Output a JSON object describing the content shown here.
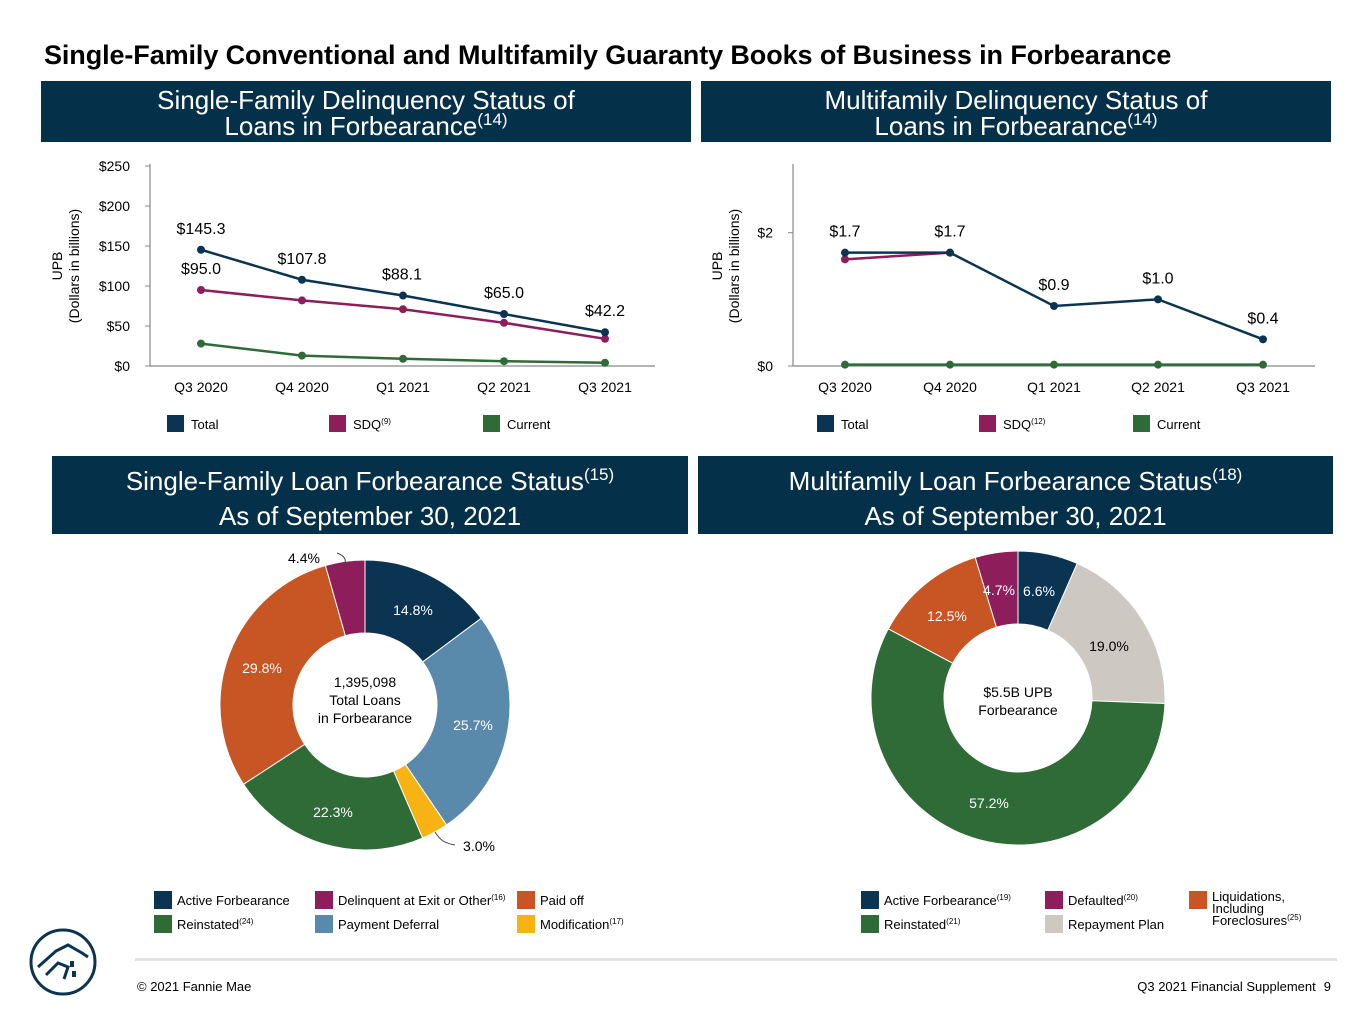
{
  "page": {
    "title": "Single-Family Conventional and Multifamily Guaranty Books of Business in Forbearance"
  },
  "panels": {
    "sf_delinquency": {
      "line1": "Single-Family Delinquency Status of",
      "line2": "Loans in Forbearance",
      "sup": "(14)"
    },
    "mf_delinquency": {
      "line1": "Multifamily Delinquency Status of",
      "line2": "Loans in Forbearance",
      "sup": "(14)"
    },
    "sf_status": {
      "line1": "Single-Family Loan Forbearance Status",
      "sup": "(15)",
      "line2": "As of September 30, 2021"
    },
    "mf_status": {
      "line1": "Multifamily Loan Forbearance Status",
      "sup": "(18)",
      "line2": "As of September 30, 2021"
    }
  },
  "colors": {
    "navy": "#0b3452",
    "magenta": "#8d1d5b",
    "green": "#2e6b37",
    "orange": "#c75624",
    "steel_blue": "#5a8aab",
    "yellow": "#f7b314",
    "light_gray": "#cdc9c2"
  },
  "chart_data": [
    {
      "id": "sf_line",
      "type": "line",
      "categories": [
        "Q3 2020",
        "Q4 2020",
        "Q1 2021",
        "Q2 2021",
        "Q3 2021"
      ],
      "ylabel": "UPB",
      "ylabel2": "(Dollars in billions)",
      "ylim": [
        0,
        250
      ],
      "yticks": [
        0,
        50,
        100,
        150,
        200,
        250
      ],
      "ytick_labels": [
        "$0",
        "$50",
        "$100",
        "$150",
        "$200",
        "$250"
      ],
      "series": [
        {
          "name": "Total",
          "sup": "",
          "color": "#0b3452",
          "values": [
            145.3,
            107.8,
            88.1,
            65.0,
            42.2
          ],
          "labels": [
            "$145.3",
            "$107.8",
            "$88.1",
            "$65.0",
            "$42.2"
          ]
        },
        {
          "name": "SDQ",
          "sup": "(9)",
          "color": "#8d1d5b",
          "values": [
            95.0,
            82,
            71,
            54,
            34
          ],
          "labels": [
            "$95.0",
            "",
            "",
            "",
            ""
          ]
        },
        {
          "name": "Current",
          "sup": "",
          "color": "#2e6b37",
          "values": [
            28,
            13,
            9,
            6,
            4
          ],
          "labels": [
            "",
            "",
            "",
            "",
            ""
          ]
        }
      ]
    },
    {
      "id": "mf_line",
      "type": "line",
      "categories": [
        "Q3 2020",
        "Q4 2020",
        "Q1 2021",
        "Q2 2021",
        "Q3 2021"
      ],
      "ylabel": "UPB",
      "ylabel2": "(Dollars in billions)",
      "ylim": [
        0,
        3
      ],
      "yticks": [
        0,
        2
      ],
      "ytick_labels": [
        "$0",
        "$2"
      ],
      "series": [
        {
          "name": "Total",
          "sup": "",
          "color": "#0b3452",
          "values": [
            1.7,
            1.7,
            0.9,
            1.0,
            0.4
          ],
          "labels": [
            "$1.7",
            "$1.7",
            "$0.9",
            "$1.0",
            "$0.4"
          ]
        },
        {
          "name": "SDQ",
          "sup": "(12)",
          "color": "#8d1d5b",
          "values": [
            1.6,
            1.7,
            null,
            null,
            null
          ],
          "labels": [
            "",
            "",
            "",
            "",
            ""
          ]
        },
        {
          "name": "Current",
          "sup": "",
          "color": "#2e6b37",
          "values": [
            0.02,
            0.02,
            0.02,
            0.02,
            0.02
          ],
          "labels": [
            "",
            "",
            "",
            "",
            ""
          ]
        }
      ]
    },
    {
      "id": "sf_donut",
      "type": "pie",
      "center_text": [
        "1,395,098",
        "Total Loans",
        "in Forbearance"
      ],
      "slices": [
        {
          "name": "Active Forbearance",
          "sup": "",
          "value": 14.8,
          "label": "14.8%",
          "color": "#0b3452"
        },
        {
          "name": "Payment Deferral",
          "sup": "",
          "value": 25.7,
          "label": "25.7%",
          "color": "#5a8aab"
        },
        {
          "name": "Modification",
          "sup": "(17)",
          "value": 3.0,
          "label": "3.0%",
          "color": "#f7b314"
        },
        {
          "name": "Reinstated",
          "sup": "(24)",
          "value": 22.3,
          "label": "22.3%",
          "color": "#2e6b37"
        },
        {
          "name": "Paid off",
          "sup": "",
          "value": 29.8,
          "label": "29.8%",
          "color": "#c75624"
        },
        {
          "name": "Delinquent at Exit or Other",
          "sup": "(16)",
          "value": 4.4,
          "label": "4.4%",
          "color": "#8d1d5b"
        }
      ],
      "legend_order": [
        "Active Forbearance",
        "Delinquent at Exit or Other",
        "Paid off",
        "Reinstated",
        "Payment Deferral",
        "Modification"
      ]
    },
    {
      "id": "mf_donut",
      "type": "pie",
      "center_text": [
        "$5.5B UPB",
        "Forbearance"
      ],
      "slices": [
        {
          "name": "Active Forbearance",
          "sup": "(19)",
          "value": 6.6,
          "label": "6.6%",
          "color": "#0b3452"
        },
        {
          "name": "Repayment Plan",
          "sup": "",
          "value": 19.0,
          "label": "19.0%",
          "color": "#cdc9c2"
        },
        {
          "name": "Reinstated",
          "sup": "(21)",
          "value": 57.2,
          "label": "57.2%",
          "color": "#2e6b37"
        },
        {
          "name": "Liquidations, Including Foreclosures",
          "sup": "(25)",
          "value": 12.5,
          "label": "12.5%",
          "color": "#c75624"
        },
        {
          "name": "Defaulted",
          "sup": "(20)",
          "value": 4.7,
          "label": "4.7%",
          "color": "#8d1d5b"
        }
      ]
    }
  ],
  "footer": {
    "copyright": "© 2021 Fannie Mae",
    "doc": "Q3 2021 Financial Supplement",
    "page_number": "9"
  }
}
